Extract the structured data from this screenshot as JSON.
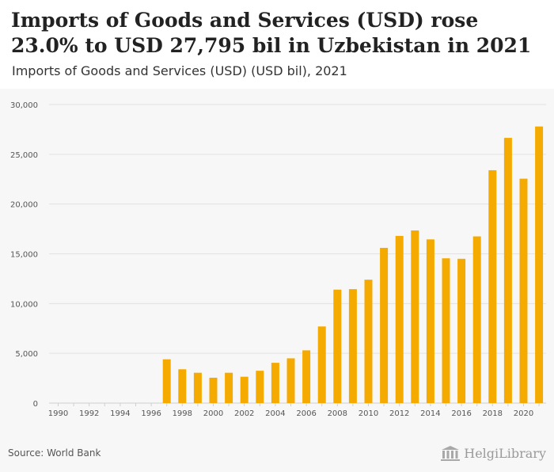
{
  "header": {
    "title": "Imports of Goods and Services (USD) rose 23.0% to USD 27,795 bil in Uzbekistan in 2021",
    "subtitle": "Imports of Goods and Services (USD) (USD bil), 2021"
  },
  "footer": {
    "source": "Source: World Bank",
    "logo_text": "HelgiLibrary"
  },
  "colors": {
    "bar": "#f5aa00",
    "grid": "#e2e2e2",
    "tick_text": "#555555",
    "background": "#f7f7f7"
  },
  "chart_data": {
    "type": "bar",
    "title": "Imports of Goods and Services (USD) rose 23.0% to USD 27,795 bil in Uzbekistan in 2021",
    "subtitle": "Imports of Goods and Services (USD) (USD bil), 2021",
    "xlabel": "",
    "ylabel": "",
    "ylim": [
      0,
      30000
    ],
    "yticks": [
      0,
      5000,
      10000,
      15000,
      20000,
      25000,
      30000
    ],
    "ytick_labels": [
      "0",
      "5,000",
      "10,000",
      "15,000",
      "20,000",
      "25,000",
      "30,000"
    ],
    "xtick_labels": [
      "1990",
      "1992",
      "1994",
      "1996",
      "1998",
      "2000",
      "2002",
      "2004",
      "2006",
      "2008",
      "2010",
      "2012",
      "2014",
      "2016",
      "2018",
      "2020"
    ],
    "grid": true,
    "legend": "none",
    "categories": [
      "1990",
      "1991",
      "1992",
      "1993",
      "1994",
      "1995",
      "1996",
      "1997",
      "1998",
      "1999",
      "2000",
      "2001",
      "2002",
      "2003",
      "2004",
      "2005",
      "2006",
      "2007",
      "2008",
      "2009",
      "2010",
      "2011",
      "2012",
      "2013",
      "2014",
      "2015",
      "2016",
      "2017",
      "2018",
      "2019",
      "2020",
      "2021"
    ],
    "values": [
      null,
      null,
      null,
      null,
      null,
      null,
      null,
      4400,
      3400,
      3050,
      2550,
      3050,
      2650,
      3250,
      4050,
      4500,
      5300,
      7700,
      11400,
      11450,
      12400,
      15600,
      16800,
      17350,
      16450,
      14550,
      14500,
      16750,
      23400,
      26650,
      22550,
      27795
    ]
  }
}
